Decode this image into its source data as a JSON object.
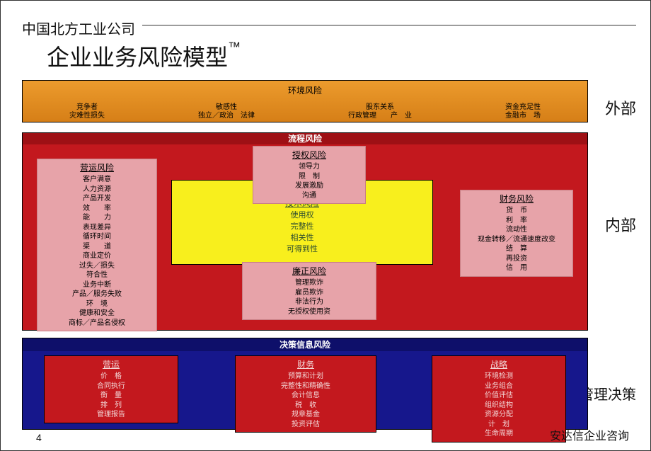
{
  "header": {
    "company": "中国北方工业公司",
    "title": "企业业务风险模型",
    "tm": "™"
  },
  "side": {
    "external": "外部",
    "internal": "内部",
    "mgmt": "管理决策"
  },
  "footer": {
    "page": "4",
    "firm": "安达信企业咨询"
  },
  "colors": {
    "orange": "#ec9b2d",
    "orangeDark": "#d67f17",
    "red": "#c3181e",
    "redDark": "#9e1015",
    "pink": "#e7a3a9",
    "pinkBorder": "#c97e84",
    "yellow": "#f8ef1d",
    "blue": "#16178c",
    "blueStrip": "#0e0f6a",
    "white": "#ffffff",
    "black": "#000000"
  },
  "orange": {
    "title": "环境风险",
    "cols": [
      {
        "a": "竞争者",
        "b": "灾难性损失"
      },
      {
        "a": "敏感性",
        "b": "独立／政治　法律"
      },
      {
        "a": "股东关系",
        "b": "行政管理　　产　业"
      },
      {
        "a": "资金充足性",
        "b": "金融市　场"
      }
    ]
  },
  "red": {
    "stripTitle": "流程风险",
    "top": {
      "hd": "授权风险",
      "lines": [
        "领导力",
        "限　制",
        "发展激励",
        "沟通"
      ]
    },
    "left": {
      "hd": "营运风险",
      "lines": [
        "客户满意",
        "人力资源",
        "产品开发",
        "效　　率",
        "能　　力",
        "表现差异",
        "循环时间",
        "渠　　道",
        "商业定价",
        "过失／损失",
        "符合性",
        "业务中断",
        "产品／服务失败",
        "环　境",
        "健康和安全",
        "商标／产品名侵权"
      ]
    },
    "right": {
      "hd": "财务风险",
      "lines": [
        "货　币",
        "利　率",
        "流动性",
        "现金转移／流通速度改变",
        "结　算",
        "再投资",
        "信　用"
      ]
    },
    "bottom": {
      "hd": "廉正风险",
      "lines": [
        "管理欺诈",
        "雇员欺诈",
        "非法行为",
        "无授权使用资"
      ]
    },
    "center": {
      "hd": "信息处理/",
      "sub": "技术风险",
      "lines": [
        "使用权",
        "完整性",
        "相关性",
        "可得到性"
      ]
    }
  },
  "blue": {
    "stripTitle": "决策信息风险",
    "left": {
      "hd": "营运",
      "lines": [
        "价　格",
        "合同执行",
        "衡　量",
        "排　列",
        "管理报告"
      ]
    },
    "mid": {
      "hd": "财务",
      "lines": [
        "预算和计划",
        "完整性和精确性",
        "会计信息",
        "税　收",
        "规章基金",
        "投资评估"
      ]
    },
    "right": {
      "hd": "战略",
      "lines": [
        "环境检测",
        "业务组合",
        "价值评估",
        "组织结构",
        "资源分配",
        "计　划",
        "生命周期"
      ]
    }
  }
}
